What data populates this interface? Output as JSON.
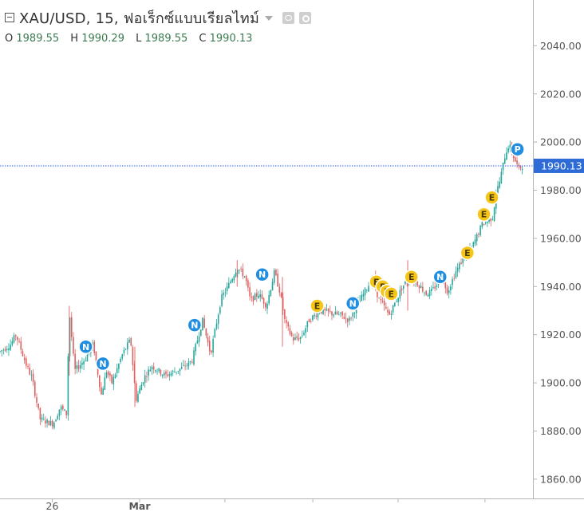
{
  "header": {
    "title": "XAU/USD, 15, ฟอเร็กซ์แบบเรียลไทม์",
    "ohlc": [
      {
        "label": "O",
        "value": "1989.55"
      },
      {
        "label": "H",
        "value": "1990.29"
      },
      {
        "label": "L",
        "value": "1989.55"
      },
      {
        "label": "C",
        "value": "1990.13"
      }
    ]
  },
  "colors": {
    "up": "#26a69a",
    "down": "#e06060",
    "last_price_line": "#2962ff",
    "last_price_badge": "#2e6bd6",
    "earnings_marker": "#f5c518",
    "news_marker": "#1f8de0",
    "axis": "#b5b5b5",
    "tick_text": "#555555"
  },
  "chart_data": {
    "type": "candlestick",
    "symbol": "XAU/USD",
    "interval": "15",
    "ylim": [
      1852,
      2059
    ],
    "y_ticks": [
      1860,
      1880,
      1900,
      1920,
      1940,
      1960,
      1980,
      2000,
      2020,
      2040
    ],
    "y_tick_labels": [
      "1860.00",
      "1880.00",
      "1900.00",
      "1920.00",
      "1940.00",
      "1960.00",
      "1980.00",
      "2000.00",
      "2020.00",
      "2040.00"
    ],
    "x_range": [
      0,
      100
    ],
    "x_ticks": [
      {
        "x": 9.8,
        "label": "26"
      },
      {
        "x": 26.2,
        "label": "Mar"
      },
      {
        "x": 42.2,
        "label": ""
      },
      {
        "x": 58.7,
        "label": ""
      },
      {
        "x": 74.7,
        "label": ""
      },
      {
        "x": 91.0,
        "label": ""
      }
    ],
    "last_price": 1990.13,
    "last_price_label": "1990.13",
    "price_path": [
      [
        0,
        1913
      ],
      [
        2,
        1916
      ],
      [
        3,
        1920
      ],
      [
        5,
        1907
      ],
      [
        6,
        1902
      ],
      [
        6.8,
        1893
      ],
      [
        7.5,
        1885
      ],
      [
        8.5,
        1884
      ],
      [
        10,
        1883
      ],
      [
        11.3,
        1890
      ],
      [
        12.5,
        1887
      ],
      [
        13,
        1930
      ],
      [
        14,
        1905
      ],
      [
        16,
        1910
      ],
      [
        17.5,
        1916
      ],
      [
        19,
        1895
      ],
      [
        20,
        1905
      ],
      [
        21,
        1900
      ],
      [
        23,
        1912
      ],
      [
        24.5,
        1918
      ],
      [
        25.5,
        1893
      ],
      [
        27,
        1902
      ],
      [
        28.5,
        1907
      ],
      [
        31,
        1903
      ],
      [
        34,
        1906
      ],
      [
        36,
        1909
      ],
      [
        38,
        1926
      ],
      [
        39.5,
        1912
      ],
      [
        41.5,
        1935
      ],
      [
        43,
        1941
      ],
      [
        44.5,
        1948
      ],
      [
        46,
        1944
      ],
      [
        47,
        1934
      ],
      [
        48.5,
        1937
      ],
      [
        50,
        1932
      ],
      [
        51.5,
        1946
      ],
      [
        52.5,
        1938
      ],
      [
        53.5,
        1925
      ],
      [
        55,
        1918
      ],
      [
        56.5,
        1919
      ],
      [
        58,
        1926
      ],
      [
        60,
        1930
      ],
      [
        62,
        1929
      ],
      [
        64,
        1928
      ],
      [
        65.5,
        1926
      ],
      [
        67,
        1932
      ],
      [
        68,
        1936
      ],
      [
        70,
        1944
      ],
      [
        71,
        1935
      ],
      [
        72,
        1932
      ],
      [
        73,
        1928
      ],
      [
        74.5,
        1935
      ],
      [
        75.5,
        1940
      ],
      [
        77,
        1944
      ],
      [
        78.5,
        1941
      ],
      [
        80,
        1937
      ],
      [
        81,
        1938
      ],
      [
        82,
        1941
      ],
      [
        83,
        1943
      ],
      [
        84,
        1938
      ],
      [
        85.5,
        1946
      ],
      [
        87,
        1952
      ],
      [
        88.5,
        1956
      ],
      [
        89.5,
        1961
      ],
      [
        90.5,
        1966
      ],
      [
        91.5,
        1967
      ],
      [
        92.5,
        1969
      ],
      [
        93,
        1978
      ],
      [
        93.8,
        1984
      ],
      [
        94.8,
        1995
      ],
      [
        95.5,
        1999
      ],
      [
        96.5,
        1993
      ],
      [
        97.3,
        1989
      ],
      [
        98,
        1990.1
      ]
    ],
    "markers": [
      {
        "type": "N",
        "x": 16.1,
        "y": 1915
      },
      {
        "type": "N",
        "x": 19.3,
        "y": 1908
      },
      {
        "type": "N",
        "x": 36.5,
        "y": 1924
      },
      {
        "type": "N",
        "x": 49.2,
        "y": 1945
      },
      {
        "type": "E",
        "x": 59.5,
        "y": 1932
      },
      {
        "type": "N",
        "x": 66.2,
        "y": 1933
      },
      {
        "type": "E",
        "x": 70.6,
        "y": 1942
      },
      {
        "type": "E",
        "x": 71.8,
        "y": 1940
      },
      {
        "type": "E",
        "x": 72.6,
        "y": 1938
      },
      {
        "type": "E",
        "x": 73.4,
        "y": 1937
      },
      {
        "type": "E",
        "x": 77.2,
        "y": 1944
      },
      {
        "type": "N",
        "x": 82.6,
        "y": 1944
      },
      {
        "type": "E",
        "x": 87.7,
        "y": 1954
      },
      {
        "type": "E",
        "x": 90.8,
        "y": 1970
      },
      {
        "type": "E",
        "x": 92.3,
        "y": 1977
      },
      {
        "type": "P",
        "x": 97.1,
        "y": 1997
      }
    ]
  }
}
